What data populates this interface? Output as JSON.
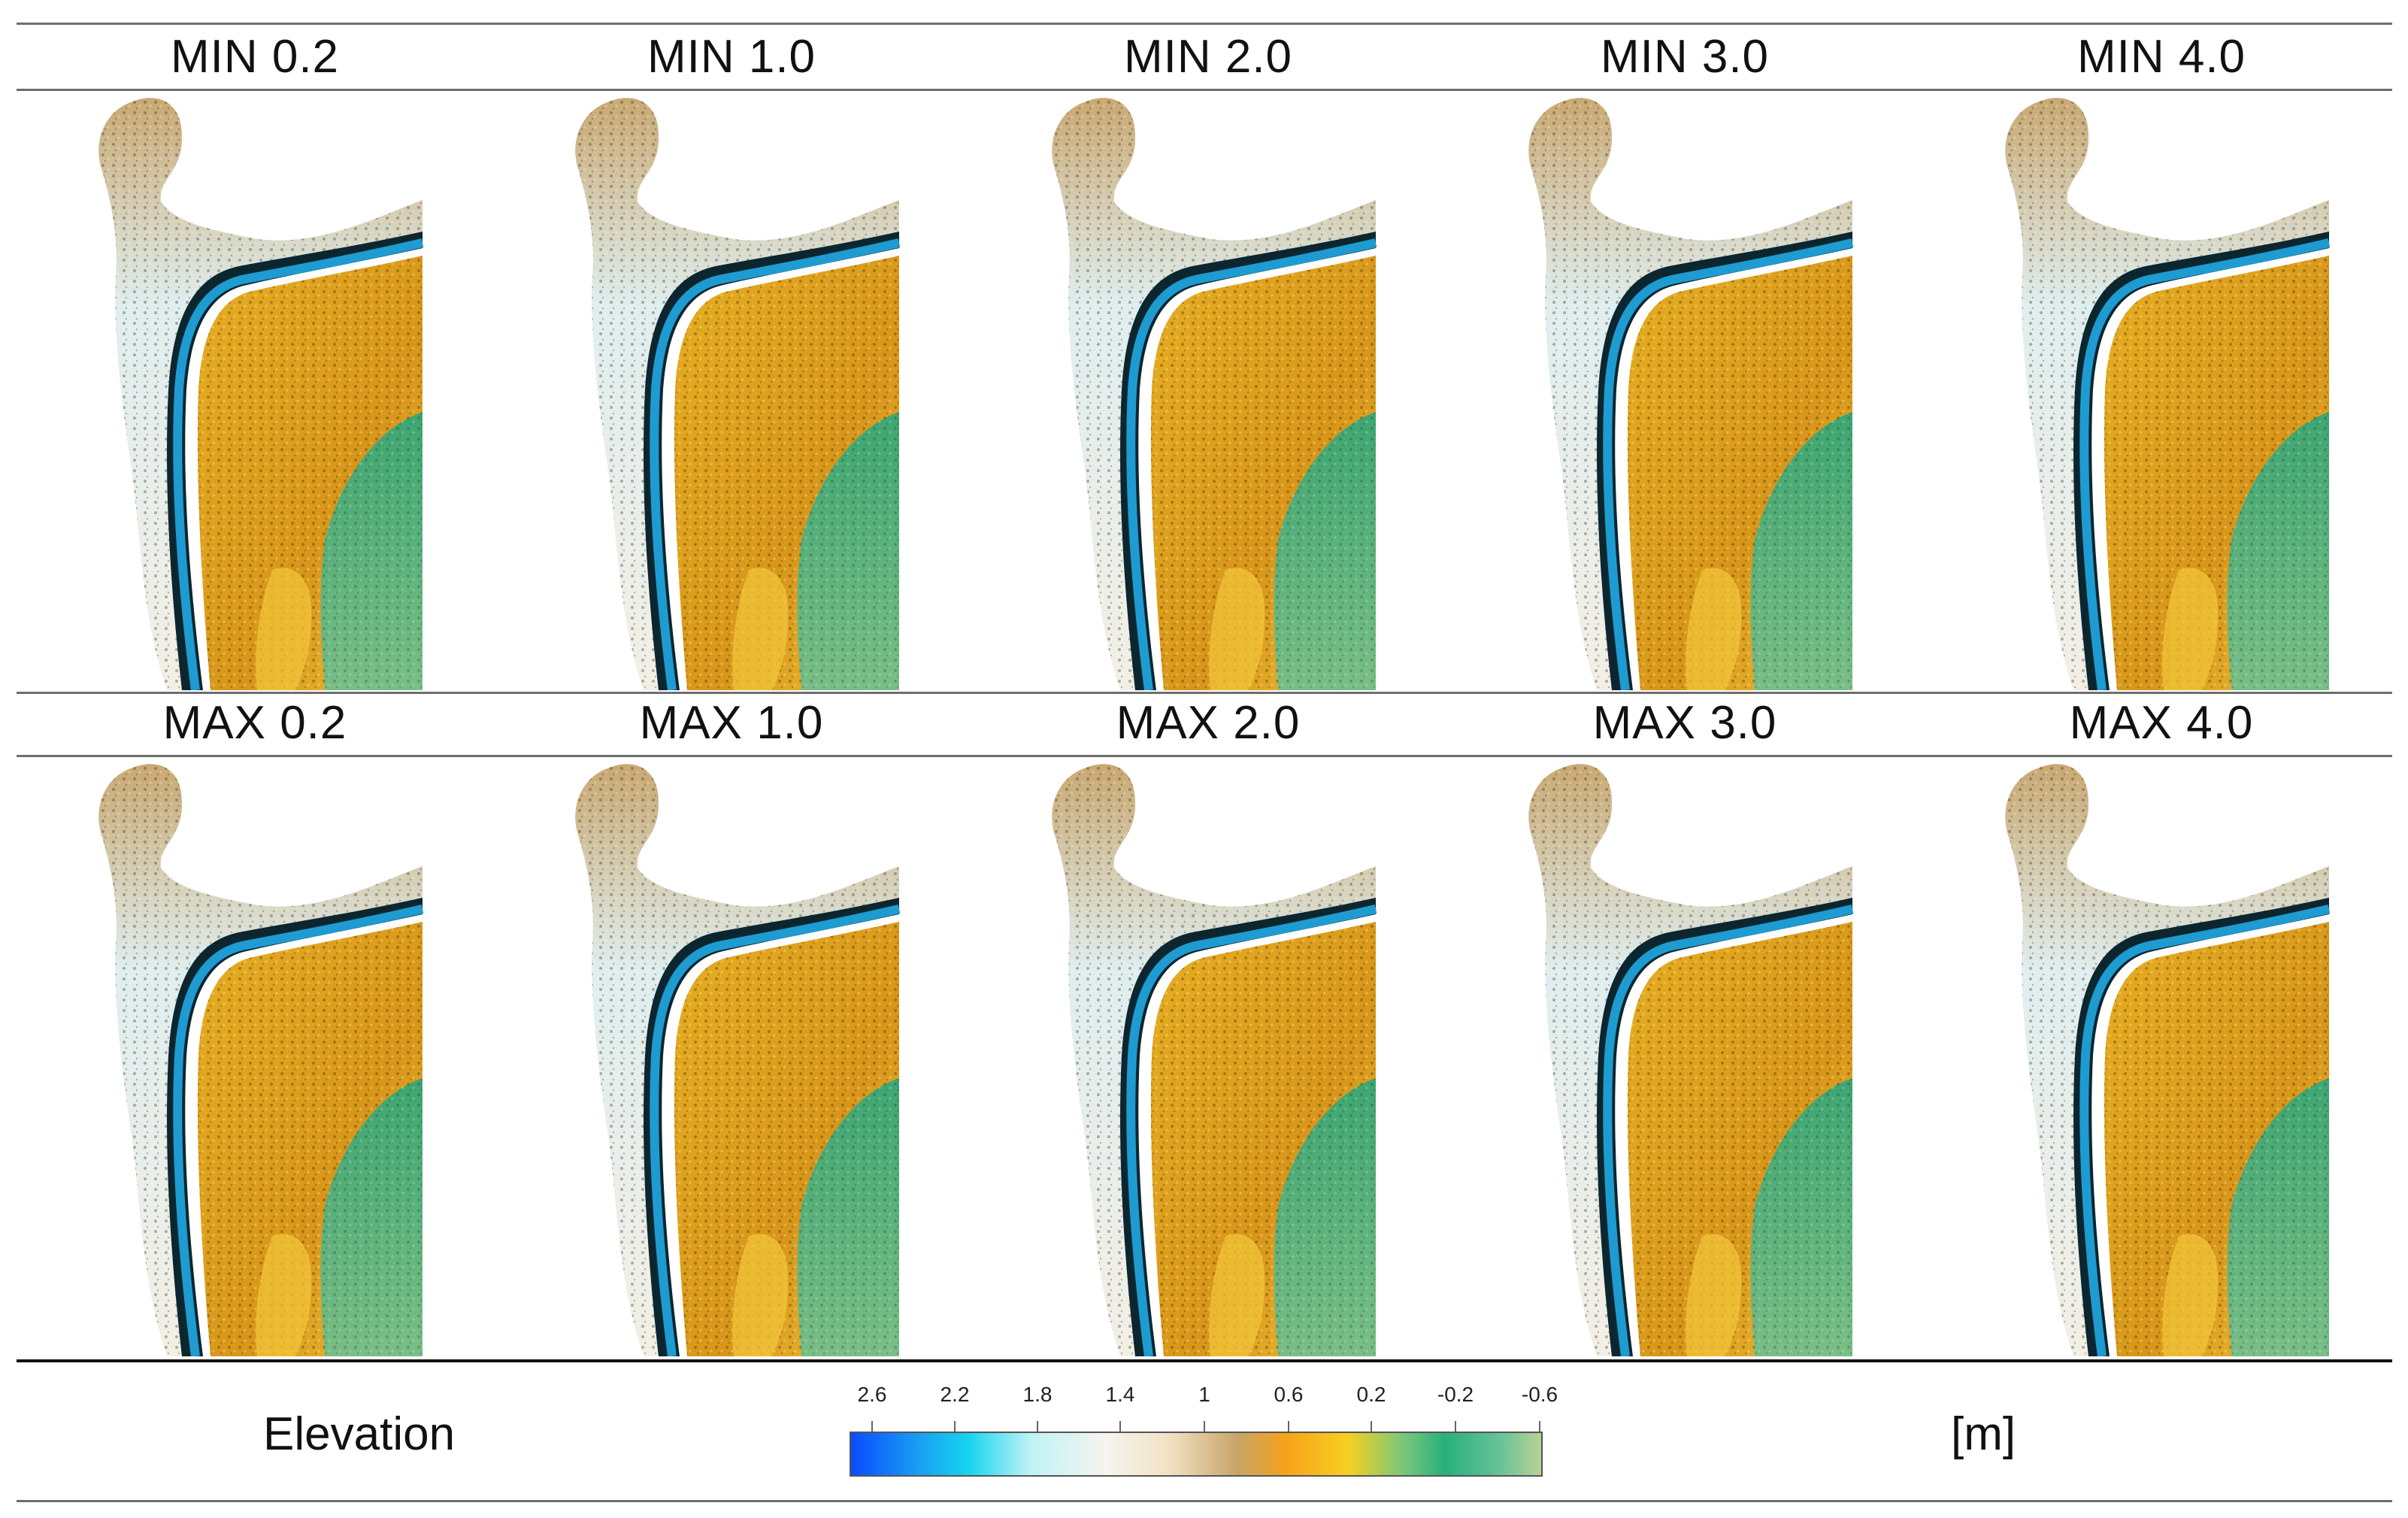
{
  "rows": [
    {
      "titles": [
        "MIN 0.2",
        "MIN 1.0",
        "MIN 2.0",
        "MIN 3.0",
        "MIN 4.0"
      ]
    },
    {
      "titles": [
        "MAX 0.2",
        "MAX 1.0",
        "MAX 2.0",
        "MAX 3.0",
        "MAX 4.0"
      ]
    }
  ],
  "legend": {
    "title": "Elevation",
    "unit": "[m]",
    "ticks": [
      "2.6",
      "2.2",
      "1.8",
      "1.4",
      "1",
      "0.6",
      "0.2",
      "-0.2",
      "-0.6"
    ]
  },
  "colors": {
    "water_channel": "#1e9bd0",
    "shore_light": "#e9f3f1",
    "terrain_orange": "#e2a418",
    "lowland_green": "#3fae83"
  }
}
